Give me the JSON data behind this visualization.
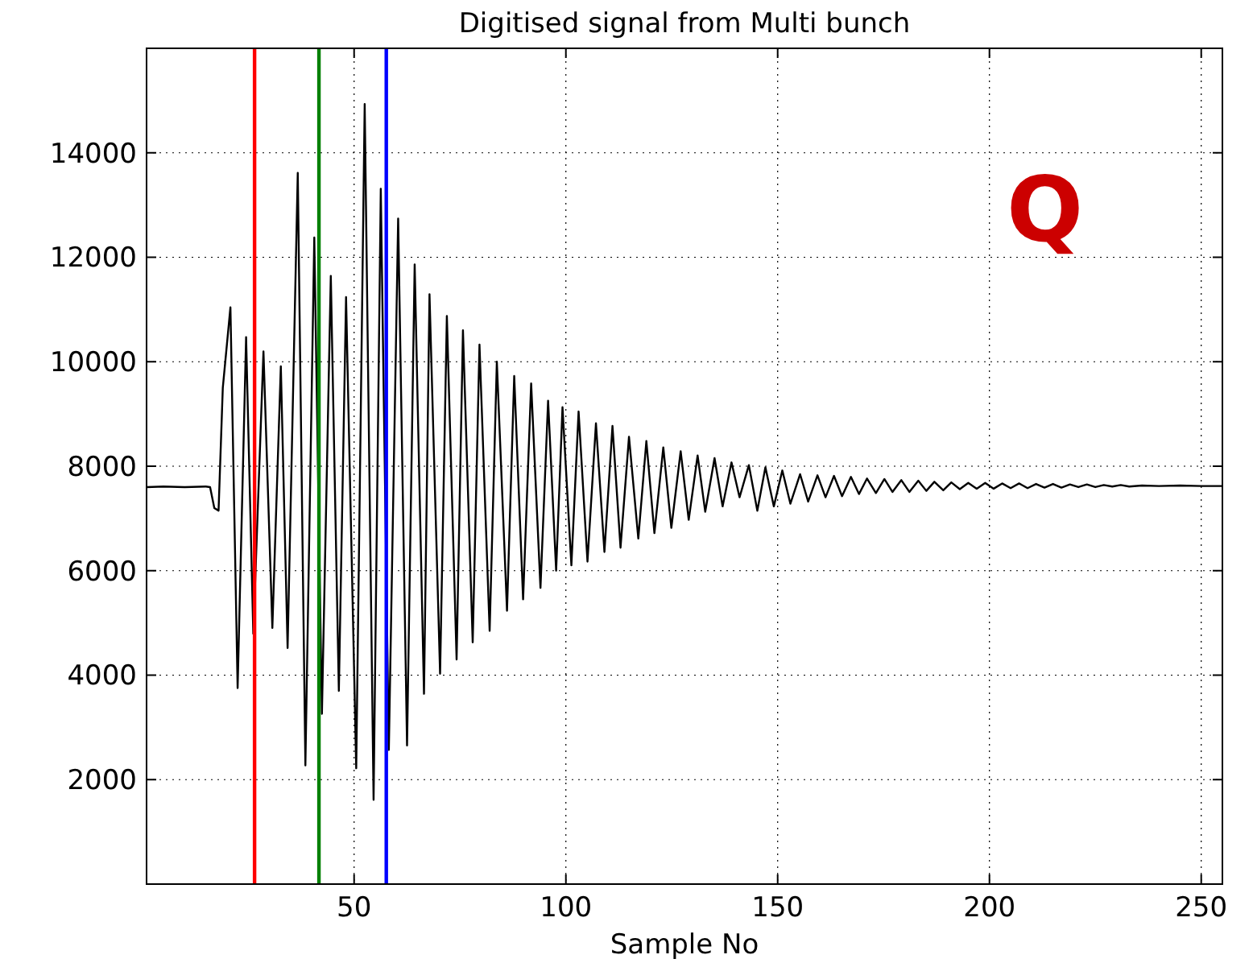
{
  "chart_data": {
    "type": "line",
    "title": "Digitised signal from Multi bunch",
    "xlabel": "Sample No",
    "annotations": [
      "Q"
    ],
    "xlim": [
      1,
      255
    ],
    "ylim": [
      0,
      16000
    ],
    "xticks": [
      50,
      100,
      150,
      200,
      250
    ],
    "yticks": [
      2000,
      4000,
      6000,
      8000,
      10000,
      12000,
      14000
    ],
    "grid": true,
    "line_style": "solid",
    "marker": "none",
    "ref_lines": [
      {
        "axis": "x",
        "value": 26.5,
        "color": "#ff0000"
      },
      {
        "axis": "x",
        "value": 41.7,
        "color": "#008000"
      },
      {
        "axis": "x",
        "value": 57.6,
        "color": "#0000ff"
      }
    ],
    "series": [
      {
        "color": "#000000",
        "x": [
          1,
          5,
          10,
          15,
          16,
          17,
          18,
          19,
          20.8,
          22.5,
          24.5,
          26.2,
          28.6,
          30.7,
          32.7,
          34.3,
          36.7,
          38.5,
          40.6,
          42.4,
          44.5,
          46.4,
          48.1,
          50.5,
          52.5,
          54.6,
          56.3,
          58.2,
          60.4,
          62.5,
          64.3,
          66.5,
          67.8,
          70.3,
          71.9,
          74.2,
          75.7,
          78,
          79.6,
          82,
          83.7,
          86.1,
          87.8,
          89.9,
          91.8,
          94,
          95.8,
          97.7,
          99.2,
          101.3,
          103,
          105.1,
          107.1,
          109.1,
          111,
          112.9,
          114.9,
          117.1,
          119,
          120.9,
          123,
          124.9,
          127.1,
          129,
          131.1,
          132.9,
          135.1,
          137,
          139.1,
          141,
          143.2,
          145.2,
          147.1,
          149.1,
          151.1,
          153,
          155.3,
          157.2,
          159.4,
          161.3,
          163.3,
          165.2,
          167.3,
          169.2,
          171.1,
          173.2,
          175.2,
          177.1,
          179.2,
          181.1,
          183.2,
          185.1,
          187,
          189.1,
          191,
          193,
          195,
          197,
          199,
          201,
          203,
          205,
          207,
          209,
          211,
          213,
          215,
          217,
          219,
          221,
          223,
          225,
          227,
          229,
          231,
          233,
          236,
          240,
          245,
          250,
          255
        ],
        "values": [
          7600,
          7610,
          7600,
          7610,
          7600,
          7200,
          7150,
          9500,
          11041,
          3752,
          10470,
          4794,
          10197,
          4903,
          9912,
          4520,
          13616,
          2273,
          12378,
          3259,
          11644,
          3698,
          11238,
          2218,
          14932,
          1615,
          13310,
          2569,
          12740,
          2656,
          11863,
          3643,
          11293,
          4027,
          10877,
          4300,
          10602,
          4629,
          10328,
          4848,
          10000,
          5232,
          9726,
          5451,
          9583,
          5670,
          9254,
          6000,
          9129,
          6102,
          9047,
          6174,
          8821,
          6358,
          8770,
          6440,
          8564,
          6615,
          8482,
          6718,
          8359,
          6820,
          8287,
          6974,
          8205,
          7128,
          8154,
          7231,
          8072,
          7405,
          8021,
          7148,
          7979,
          7231,
          7918,
          7282,
          7846,
          7323,
          7826,
          7405,
          7815,
          7426,
          7795,
          7467,
          7764,
          7487,
          7754,
          7508,
          7733,
          7508,
          7723,
          7528,
          7702,
          7538,
          7690,
          7560,
          7680,
          7570,
          7680,
          7570,
          7670,
          7580,
          7670,
          7580,
          7660,
          7590,
          7660,
          7590,
          7650,
          7600,
          7650,
          7600,
          7640,
          7610,
          7640,
          7610,
          7630,
          7620,
          7630,
          7620,
          7620
        ]
      }
    ]
  }
}
